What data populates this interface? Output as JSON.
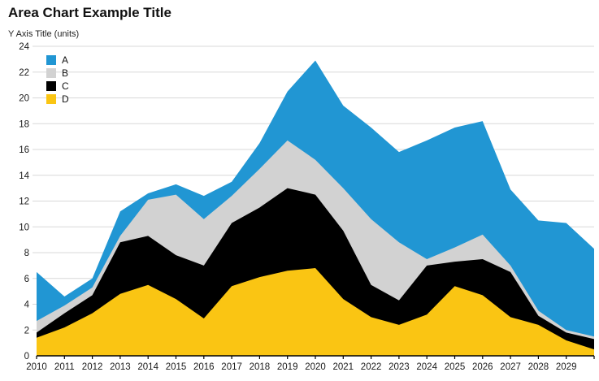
{
  "chart_data": {
    "type": "area",
    "stacked": true,
    "title": "Area Chart Example Title",
    "y_axis_title": "Y Axis Title (units)",
    "x_labels": [
      "2010",
      "2011",
      "2012",
      "2013",
      "2014",
      "2015",
      "2016",
      "2017",
      "2018",
      "2019",
      "2020",
      "2021",
      "2022",
      "2023",
      "2024",
      "2025",
      "2026",
      "2027",
      "2028",
      "2029"
    ],
    "x_points": [
      2010,
      2011,
      2012,
      2013,
      2014,
      2015,
      2016,
      2017,
      2018,
      2019,
      2020,
      2021,
      2022,
      2023,
      2024,
      2025,
      2026,
      2027,
      2028,
      2029,
      2030
    ],
    "ylim": [
      0,
      24
    ],
    "ytick_step": 2,
    "yticks": [
      0,
      2,
      4,
      6,
      8,
      10,
      12,
      14,
      16,
      18,
      20,
      22,
      24
    ],
    "grid": "horizontal",
    "legend_position": "top-left-inside",
    "stack_order_bottom_to_top": [
      "D",
      "C",
      "B",
      "A"
    ],
    "series": [
      {
        "name": "A",
        "color": "#2196d3",
        "values": [
          3.8,
          0.7,
          0.7,
          1.9,
          0.5,
          0.8,
          1.8,
          1.1,
          2.0,
          3.8,
          7.7,
          6.4,
          7.1,
          7.0,
          9.2,
          9.3,
          8.8,
          5.9,
          7.0,
          8.3,
          6.8
        ]
      },
      {
        "name": "B",
        "color": "#d2d2d2",
        "values": [
          0.9,
          0.6,
          0.6,
          0.5,
          2.8,
          4.7,
          3.6,
          2.1,
          3.0,
          3.7,
          2.7,
          3.3,
          5.1,
          4.5,
          0.5,
          1.1,
          1.9,
          0.5,
          0.4,
          0.2,
          0.2
        ]
      },
      {
        "name": "C",
        "color": "#000000",
        "values": [
          0.4,
          1.1,
          1.4,
          4.0,
          3.8,
          3.4,
          4.1,
          4.9,
          5.4,
          6.4,
          5.7,
          5.3,
          2.5,
          1.9,
          3.8,
          1.9,
          2.8,
          3.5,
          0.7,
          0.6,
          0.8
        ]
      },
      {
        "name": "D",
        "color": "#fac513",
        "values": [
          1.4,
          2.2,
          3.3,
          4.8,
          5.5,
          4.4,
          2.9,
          5.4,
          6.1,
          6.6,
          6.8,
          4.4,
          3.0,
          2.4,
          3.2,
          5.4,
          4.7,
          3.0,
          2.4,
          1.2,
          0.5
        ]
      }
    ],
    "axis_color": "#000000",
    "grid_color": "#d8d8d8",
    "tick_label_color": "#1a1a1a"
  }
}
